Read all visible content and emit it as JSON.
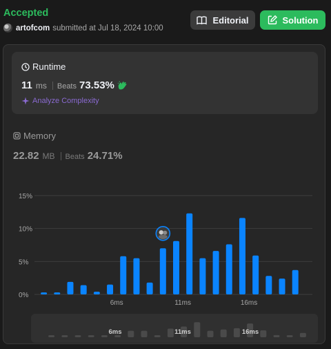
{
  "header": {
    "status": "Accepted",
    "username": "artofcom",
    "submitted_text": "submitted at Jul 18, 2024 10:00",
    "editorial_label": "Editorial",
    "solution_label": "Solution"
  },
  "runtime": {
    "title": "Runtime",
    "value": "11",
    "unit": "ms",
    "beats_label": "Beats",
    "beats_value": "73.53%",
    "analyze_label": "Analyze Complexity"
  },
  "memory": {
    "title": "Memory",
    "value": "22.82",
    "unit": "MB",
    "beats_label": "Beats",
    "beats_value": "24.71%"
  },
  "colors": {
    "accepted": "#2cbb5d",
    "bar": "#0a84ff",
    "analyze": "#8a6ad1"
  },
  "chart_data": {
    "type": "bar",
    "x": [
      1,
      2,
      3,
      4,
      5,
      6,
      7,
      8,
      9,
      10,
      11,
      12,
      13,
      14,
      15,
      16,
      17,
      18,
      19,
      20,
      21
    ],
    "values": [
      0.3,
      0.3,
      1.9,
      1.4,
      0.4,
      1.5,
      5.8,
      5.5,
      1.8,
      7.0,
      8.1,
      12.3,
      5.5,
      6.6,
      7.6,
      11.6,
      5.9,
      2.8,
      2.4,
      3.7,
      null
    ],
    "x_tick_labels": [
      "6ms",
      "11ms",
      "16ms"
    ],
    "x_tick_positions": [
      6,
      11,
      16
    ],
    "y_tick_labels": [
      "0%",
      "5%",
      "10%",
      "15%"
    ],
    "y_ticks": [
      0,
      5,
      10,
      15
    ],
    "ylim": [
      0,
      15
    ],
    "marker_index": 10,
    "mini_values": [
      0.3,
      0.3,
      0.3,
      0.3,
      0.3,
      0.3,
      1.5,
      1.5,
      0.3,
      2.0,
      2.5,
      3.5,
      1.5,
      1.8,
      2.1,
      3.2,
      1.6,
      0.5,
      0.4,
      1.0
    ],
    "mini_tick_labels": [
      "6ms",
      "11ms",
      "16ms"
    ]
  }
}
